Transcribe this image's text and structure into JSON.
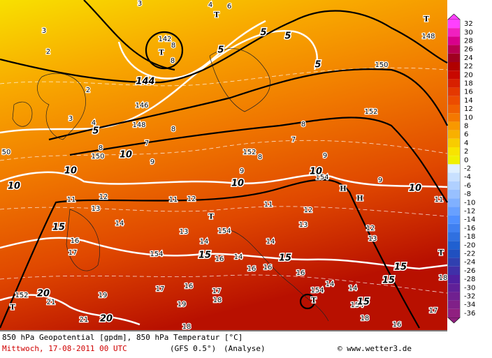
{
  "legend": {
    "values": [
      32,
      30,
      28,
      26,
      24,
      22,
      20,
      18,
      16,
      14,
      12,
      10,
      8,
      6,
      4,
      2,
      0,
      -2,
      -4,
      -6,
      -8,
      -10,
      -12,
      -14,
      -16,
      -18,
      -20,
      -22,
      -24,
      -26,
      -28,
      -30,
      -32,
      -34,
      -36
    ],
    "colors": [
      "#ff40ff",
      "#f020c0",
      "#d8008c",
      "#b80050",
      "#a00020",
      "#b00000",
      "#c80800",
      "#d82000",
      "#e43800",
      "#ec4c00",
      "#f06000",
      "#f47800",
      "#f89800",
      "#f8b000",
      "#f8cc00",
      "#f8e400",
      "#f0f000",
      "#e0f0ff",
      "#c8e0ff",
      "#b0d0ff",
      "#98c0ff",
      "#80b0ff",
      "#68a0ff",
      "#5090ff",
      "#4080f0",
      "#3070e0",
      "#2060d0",
      "#2050c0",
      "#3040b0",
      "#4030a8",
      "#5020a0",
      "#602098",
      "#702090",
      "#802088",
      "#902080"
    ]
  },
  "map": {
    "labels": [
      "142",
      "T",
      "144",
      "146",
      "148",
      "150",
      "152",
      "150",
      "152",
      "148",
      "154",
      "154",
      "154",
      "154",
      "154",
      "152",
      "5",
      "5",
      "5",
      "5",
      "5",
      "10",
      "10",
      "10",
      "10",
      "10",
      "10",
      "15",
      "15",
      "15",
      "15",
      "15",
      "20",
      "20",
      "15",
      "T",
      "T",
      "T",
      "T",
      "T",
      "H",
      "H",
      "11",
      "12",
      "13",
      "11",
      "12",
      "11",
      "12",
      "13",
      "14",
      "13",
      "14",
      "16",
      "17",
      "16",
      "14",
      "16",
      "16",
      "14",
      "12",
      "13",
      "16",
      "14",
      "14",
      "17",
      "16",
      "17",
      "18",
      "19",
      "19",
      "18",
      "17",
      "16",
      "18",
      "21",
      "21",
      "8",
      "7",
      "8",
      "8",
      "9",
      "9",
      "9",
      "8",
      "7",
      "9",
      "3",
      "2",
      "3",
      "4",
      "2",
      "6",
      "4",
      "3",
      "8",
      "8",
      "11",
      "18",
      "50",
      "T"
    ]
  },
  "footer": {
    "line1": "850 hPa Geopotential [gpdm], 850 hPa Temperatur [°C]",
    "date": "Mittwoch, 17-08-2011  00 UTC",
    "model": "(GFS 0.5°)",
    "run": "(Analyse)",
    "credit": "© www.wetter3.de"
  }
}
